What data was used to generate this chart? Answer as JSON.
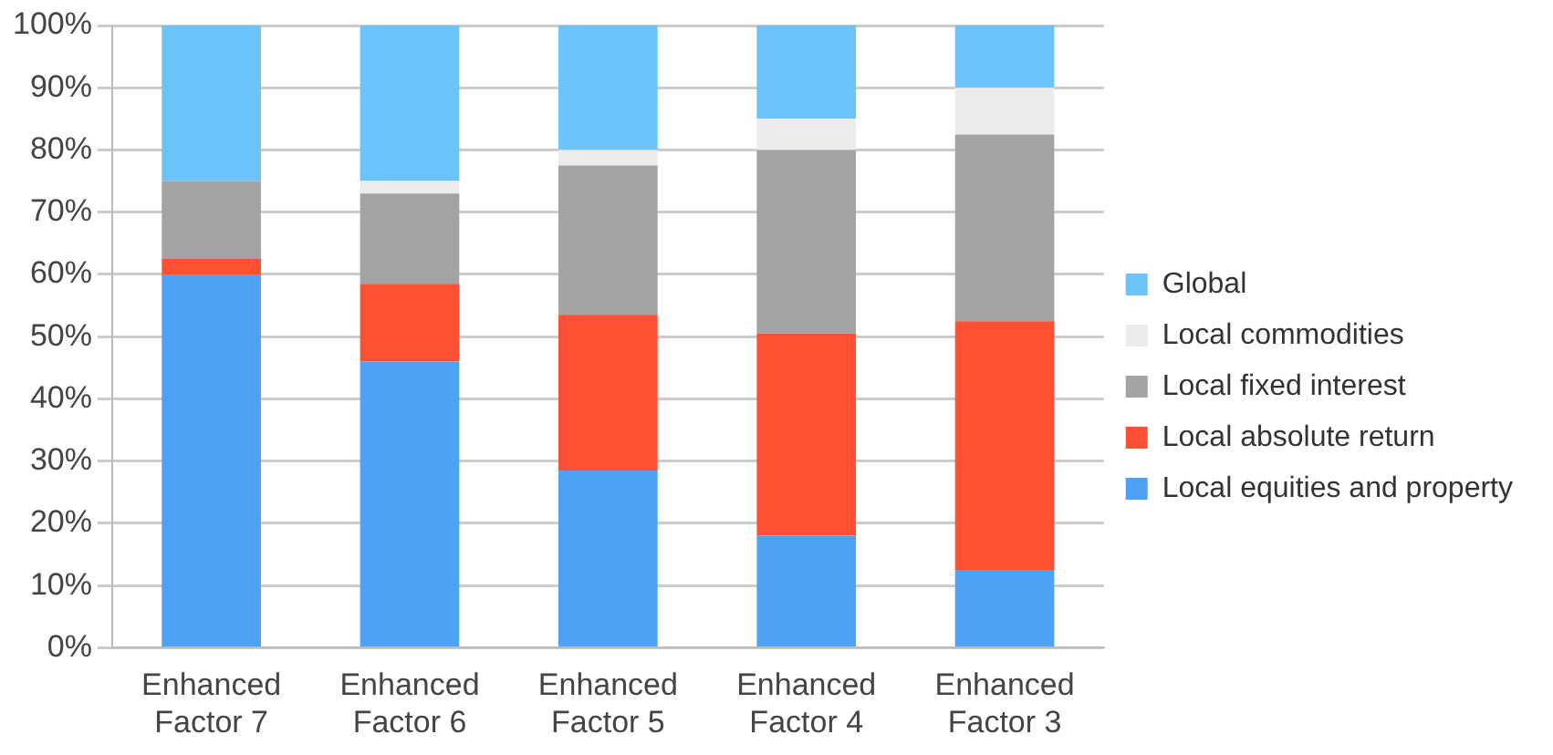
{
  "chart_data": {
    "type": "bar",
    "stacked": true,
    "categories": [
      "Enhanced Factor 7",
      "Enhanced Factor 6",
      "Enhanced Factor 5",
      "Enhanced Factor 4",
      "Enhanced Factor 3"
    ],
    "series": [
      {
        "name": "Local equities and property",
        "color": "#4ea2f5",
        "values": [
          60,
          46,
          28.5,
          18,
          12.5
        ]
      },
      {
        "name": "Local absolute return",
        "color": "#ff5034",
        "values": [
          2.5,
          12.5,
          25,
          32.5,
          40
        ]
      },
      {
        "name": "Local fixed interest",
        "color": "#a3a3a6",
        "values": [
          12.5,
          14.5,
          24,
          29.5,
          30
        ]
      },
      {
        "name": "Local commodities",
        "color": "#ececec",
        "values": [
          0,
          2,
          2.5,
          5,
          7.5
        ]
      },
      {
        "name": "Global",
        "color": "#6cc3fa",
        "values": [
          25,
          25,
          20,
          15,
          10
        ]
      }
    ],
    "ylim": [
      0,
      100
    ],
    "yticks": [
      {
        "value": 0,
        "label": "0%"
      },
      {
        "value": 10,
        "label": "10%"
      },
      {
        "value": 20,
        "label": "20%"
      },
      {
        "value": 30,
        "label": "30%"
      },
      {
        "value": 40,
        "label": "40%"
      },
      {
        "value": 50,
        "label": "50%"
      },
      {
        "value": 60,
        "label": "60%"
      },
      {
        "value": 70,
        "label": "70%"
      },
      {
        "value": 80,
        "label": "80%"
      },
      {
        "value": 90,
        "label": "90%"
      },
      {
        "value": 100,
        "label": "100%"
      }
    ],
    "grid": "y",
    "legend": "right"
  }
}
